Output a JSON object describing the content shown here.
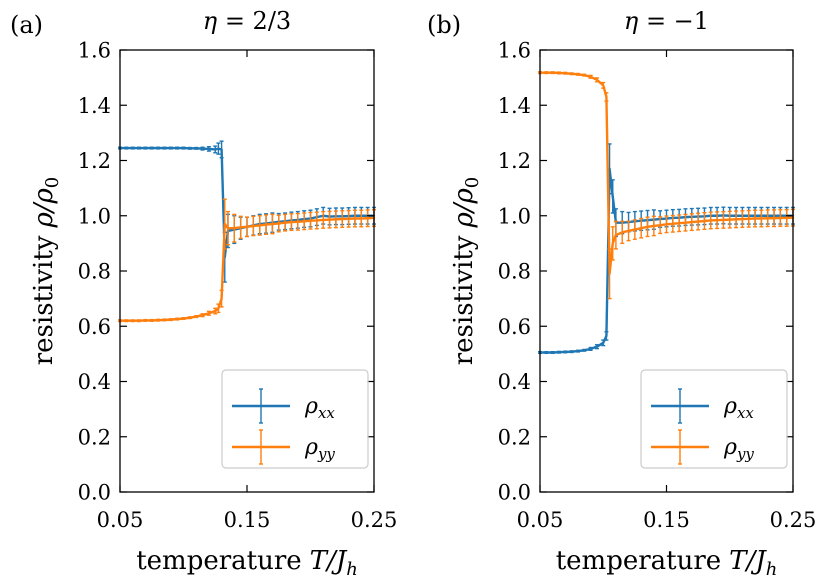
{
  "chart_data": [
    {
      "panel_label": "(a)",
      "type": "line",
      "title": "η = 2/3",
      "xlabel": {
        "text": "temperature",
        "math": "T/J",
        "sub": "h"
      },
      "ylabel": {
        "text": "resistivity",
        "math": "ρ/ρ",
        "sub": "0"
      },
      "xlim": [
        0.05,
        0.25
      ],
      "ylim": [
        0.0,
        1.6
      ],
      "xticks": [
        "0.05",
        "0.15",
        "0.25"
      ],
      "yticks": [
        "0.0",
        "0.2",
        "0.4",
        "0.6",
        "0.8",
        "1.0",
        "1.2",
        "1.4",
        "1.6"
      ],
      "grid": false,
      "legend": "lower right",
      "x": [
        0.05,
        0.055,
        0.06,
        0.065,
        0.07,
        0.075,
        0.08,
        0.085,
        0.09,
        0.095,
        0.1,
        0.105,
        0.11,
        0.115,
        0.12,
        0.125,
        0.1275,
        0.13,
        0.1325,
        0.135,
        0.14,
        0.145,
        0.15,
        0.155,
        0.16,
        0.165,
        0.17,
        0.175,
        0.18,
        0.185,
        0.19,
        0.195,
        0.2,
        0.205,
        0.21,
        0.215,
        0.22,
        0.225,
        0.23,
        0.235,
        0.24,
        0.245,
        0.25
      ],
      "series": [
        {
          "name": "ρxx",
          "color": "#1f77b4",
          "y": [
            1.245,
            1.245,
            1.245,
            1.245,
            1.245,
            1.245,
            1.245,
            1.245,
            1.245,
            1.245,
            1.245,
            1.244,
            1.244,
            1.243,
            1.242,
            1.24,
            1.243,
            1.24,
            0.85,
            0.945,
            0.95,
            0.955,
            0.96,
            0.965,
            0.97,
            0.972,
            0.975,
            0.978,
            0.98,
            0.983,
            0.985,
            0.988,
            0.99,
            0.995,
            1.0,
            0.997,
            0.998,
            0.998,
            0.999,
            1.0,
            1.0,
            1.0,
            1.0
          ],
          "err": [
            0.003,
            0.003,
            0.003,
            0.003,
            0.003,
            0.003,
            0.003,
            0.003,
            0.003,
            0.003,
            0.003,
            0.003,
            0.003,
            0.005,
            0.008,
            0.012,
            0.02,
            0.03,
            0.09,
            0.06,
            0.05,
            0.04,
            0.035,
            0.035,
            0.035,
            0.035,
            0.035,
            0.03,
            0.03,
            0.03,
            0.03,
            0.03,
            0.03,
            0.03,
            0.03,
            0.03,
            0.03,
            0.03,
            0.03,
            0.03,
            0.03,
            0.03,
            0.03
          ]
        },
        {
          "name": "ρyy",
          "color": "#ff7f0e",
          "y": [
            0.62,
            0.62,
            0.62,
            0.62,
            0.621,
            0.621,
            0.622,
            0.623,
            0.624,
            0.626,
            0.628,
            0.631,
            0.635,
            0.64,
            0.647,
            0.655,
            0.665,
            0.7,
            0.97,
            0.955,
            0.955,
            0.958,
            0.96,
            0.963,
            0.965,
            0.968,
            0.97,
            0.972,
            0.975,
            0.977,
            0.978,
            0.98,
            0.982,
            0.983,
            0.985,
            0.986,
            0.987,
            0.988,
            0.989,
            0.99,
            0.99,
            0.991,
            0.992
          ],
          "err": [
            0.003,
            0.003,
            0.003,
            0.003,
            0.003,
            0.003,
            0.003,
            0.003,
            0.003,
            0.003,
            0.003,
            0.003,
            0.003,
            0.005,
            0.007,
            0.01,
            0.015,
            0.03,
            0.09,
            0.06,
            0.05,
            0.04,
            0.035,
            0.035,
            0.035,
            0.035,
            0.035,
            0.03,
            0.03,
            0.03,
            0.03,
            0.03,
            0.03,
            0.03,
            0.03,
            0.03,
            0.03,
            0.03,
            0.03,
            0.03,
            0.03,
            0.03,
            0.03
          ]
        }
      ]
    },
    {
      "panel_label": "(b)",
      "type": "line",
      "title": "η = −1",
      "xlabel": {
        "text": "temperature",
        "math": "T/J",
        "sub": "h"
      },
      "ylabel": {
        "text": "resistivity",
        "math": "ρ/ρ",
        "sub": "0"
      },
      "xlim": [
        0.05,
        0.25
      ],
      "ylim": [
        0.0,
        1.6
      ],
      "xticks": [
        "0.05",
        "0.15",
        "0.25"
      ],
      "yticks": [
        "0.0",
        "0.2",
        "0.4",
        "0.6",
        "0.8",
        "1.0",
        "1.2",
        "1.4",
        "1.6"
      ],
      "grid": false,
      "legend": "lower right",
      "x": [
        0.05,
        0.055,
        0.06,
        0.065,
        0.07,
        0.075,
        0.08,
        0.085,
        0.09,
        0.095,
        0.1,
        0.1025,
        0.105,
        0.1075,
        0.11,
        0.115,
        0.12,
        0.125,
        0.13,
        0.135,
        0.14,
        0.145,
        0.15,
        0.155,
        0.16,
        0.165,
        0.17,
        0.175,
        0.18,
        0.185,
        0.19,
        0.195,
        0.2,
        0.205,
        0.21,
        0.215,
        0.22,
        0.225,
        0.23,
        0.235,
        0.24,
        0.245,
        0.25
      ],
      "series": [
        {
          "name": "ρxx",
          "color": "#1f77b4",
          "y": [
            0.505,
            0.505,
            0.505,
            0.506,
            0.507,
            0.508,
            0.51,
            0.513,
            0.518,
            0.526,
            0.54,
            0.565,
            1.17,
            1.07,
            0.975,
            0.975,
            0.977,
            0.98,
            0.982,
            0.984,
            0.986,
            0.988,
            0.99,
            0.992,
            0.993,
            0.995,
            0.996,
            0.997,
            0.998,
            1.0,
            1.0,
            1.001,
            1.0,
            1.0,
            1.0,
            1.0,
            1.0,
            1.0,
            1.0,
            1.0,
            1.0,
            1.0,
            1.0
          ],
          "err": [
            0.003,
            0.003,
            0.003,
            0.003,
            0.003,
            0.003,
            0.003,
            0.003,
            0.005,
            0.007,
            0.01,
            0.015,
            0.09,
            0.06,
            0.05,
            0.04,
            0.035,
            0.035,
            0.035,
            0.035,
            0.035,
            0.03,
            0.03,
            0.03,
            0.03,
            0.03,
            0.03,
            0.03,
            0.03,
            0.03,
            0.03,
            0.03,
            0.03,
            0.03,
            0.03,
            0.03,
            0.03,
            0.03,
            0.03,
            0.03,
            0.03,
            0.03,
            0.03
          ]
        },
        {
          "name": "ρyy",
          "color": "#ff7f0e",
          "y": [
            1.518,
            1.518,
            1.518,
            1.517,
            1.516,
            1.514,
            1.512,
            1.509,
            1.503,
            1.492,
            1.472,
            1.43,
            0.79,
            0.9,
            0.93,
            0.94,
            0.945,
            0.95,
            0.955,
            0.96,
            0.963,
            0.966,
            0.969,
            0.971,
            0.973,
            0.975,
            0.977,
            0.979,
            0.981,
            0.983,
            0.984,
            0.985,
            0.986,
            0.987,
            0.988,
            0.989,
            0.99,
            0.99,
            0.991,
            0.991,
            0.992,
            0.992,
            0.993
          ],
          "err": [
            0.003,
            0.003,
            0.003,
            0.003,
            0.003,
            0.003,
            0.003,
            0.003,
            0.005,
            0.007,
            0.01,
            0.015,
            0.09,
            0.06,
            0.05,
            0.04,
            0.035,
            0.035,
            0.035,
            0.035,
            0.035,
            0.03,
            0.03,
            0.03,
            0.03,
            0.03,
            0.03,
            0.03,
            0.03,
            0.03,
            0.03,
            0.03,
            0.03,
            0.03,
            0.03,
            0.03,
            0.03,
            0.03,
            0.03,
            0.03,
            0.03,
            0.03,
            0.03
          ]
        }
      ]
    }
  ]
}
